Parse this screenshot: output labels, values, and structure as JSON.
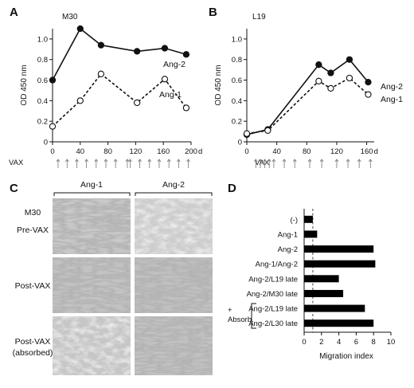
{
  "panels": {
    "A": {
      "label": "A",
      "subtitle": "M30",
      "ylabel": "OD 450 nm",
      "xunit": "d",
      "vax_label": "VAX",
      "yticks": [
        "0",
        "0.2",
        "0.4",
        "0.6",
        "0.8",
        "1.0"
      ],
      "xticks": [
        "0",
        "40",
        "80",
        "120",
        "160",
        "200"
      ],
      "series_labels": [
        "Ang-2",
        "Ang-1"
      ]
    },
    "B": {
      "label": "B",
      "subtitle": "L19",
      "ylabel": "OD 450 nm",
      "xunit": "d",
      "vax_label": "VAX",
      "yticks": [
        "0",
        "0.2",
        "0.4",
        "0.6",
        "0.8",
        "1.0"
      ],
      "xticks": [
        "0",
        "40",
        "80",
        "120",
        "160"
      ],
      "series_labels": [
        "Ang-2",
        "Ang-1"
      ]
    },
    "C": {
      "label": "C",
      "col_headers": [
        "Ang-1",
        "Ang-2"
      ],
      "row_labels": [
        "M30",
        "Pre-VAX",
        "Post-VAX",
        "Post-VAX",
        "(absorbed)"
      ]
    },
    "D": {
      "label": "D",
      "xlabel": "Migration index",
      "xticks": [
        "0",
        "2",
        "4",
        "6",
        "8",
        "10"
      ],
      "absorb_labels": [
        "+",
        "Absorb."
      ]
    }
  },
  "chart_data": [
    {
      "type": "line",
      "panel": "A",
      "title": "M30",
      "xlabel": "",
      "ylabel": "OD 450 nm",
      "xlim": [
        0,
        200
      ],
      "ylim": [
        0,
        1.1
      ],
      "grid": false,
      "series": [
        {
          "name": "Ang-2",
          "style": "solid",
          "marker": "filled-circle",
          "color": "#111111",
          "x": [
            0,
            40,
            70,
            122,
            162,
            193
          ],
          "y": [
            0.6,
            1.1,
            0.94,
            0.88,
            0.91,
            0.85
          ]
        },
        {
          "name": "Ang-1",
          "style": "dashed",
          "marker": "open-circle",
          "color": "#111111",
          "x": [
            0,
            40,
            70,
            122,
            162,
            193
          ],
          "y": [
            0.15,
            0.4,
            0.66,
            0.38,
            0.61,
            0.33
          ]
        }
      ],
      "vax_days": [
        8,
        21,
        35,
        49,
        63,
        77,
        91,
        108,
        112,
        126,
        140,
        154,
        168,
        182,
        196
      ]
    },
    {
      "type": "line",
      "panel": "B",
      "title": "L19",
      "xlabel": "",
      "ylabel": "OD 450 nm",
      "xlim": [
        0,
        170
      ],
      "ylim": [
        0,
        1.1
      ],
      "grid": false,
      "series": [
        {
          "name": "Ang-2",
          "style": "solid",
          "marker": "filled-circle",
          "color": "#111111",
          "x": [
            0,
            28,
            96,
            112,
            137,
            162
          ],
          "y": [
            0.07,
            0.12,
            0.75,
            0.67,
            0.8,
            0.58
          ]
        },
        {
          "name": "Ang-1",
          "style": "dashed",
          "marker": "open-circle",
          "color": "#111111",
          "x": [
            0,
            28,
            96,
            112,
            137,
            162
          ],
          "y": [
            0.08,
            0.11,
            0.59,
            0.52,
            0.62,
            0.46
          ]
        }
      ],
      "vax_days": [
        12,
        18,
        24,
        30,
        36,
        50,
        64,
        84,
        100,
        120,
        135,
        150,
        165
      ]
    },
    {
      "type": "bar",
      "panel": "D",
      "orientation": "horizontal",
      "xlabel": "Migration index",
      "xlim": [
        0,
        10
      ],
      "reference_line": 1,
      "categories": [
        "(-)",
        "Ang-1",
        "Ang-2",
        "Ang-1/Ang-2",
        "Ang-2/L19 late",
        "Ang-2/M30 late",
        "Ang-2/L19 late",
        "Ang-2/L30 late"
      ],
      "values": [
        1.0,
        1.5,
        8.0,
        8.2,
        4.0,
        4.5,
        7.0,
        8.0
      ],
      "bar_color": "#000000"
    }
  ]
}
